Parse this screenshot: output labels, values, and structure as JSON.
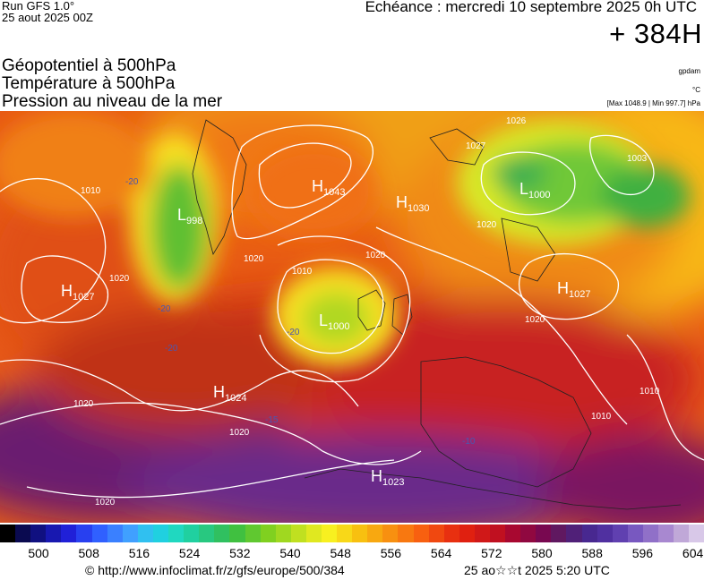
{
  "header": {
    "run": "Run GFS 1.0°",
    "run_date": "25 aout 2025 00Z",
    "echeance": "Echéance : mercredi 10 septembre 2025 0h UTC",
    "forecast_hour": "+ 384H"
  },
  "fields": {
    "line1": "Géopotentiel à 500hPa",
    "line2": "Température à 500hPa",
    "line3": "Pression au niveau de la mer"
  },
  "units": {
    "geopotential": "gpdam",
    "temperature": "°C",
    "pressure": "[Max 1048.9 | Min 997.7] hPa"
  },
  "pressure_centers": [
    {
      "type": "H",
      "value": "1043"
    },
    {
      "type": "H",
      "value": "1030"
    },
    {
      "type": "L",
      "value": "1000"
    },
    {
      "type": "L",
      "value": "998"
    },
    {
      "type": "H",
      "value": "1027"
    },
    {
      "type": "L",
      "value": "1000"
    },
    {
      "type": "H",
      "value": "1027"
    },
    {
      "type": "H",
      "value": "1024"
    },
    {
      "type": "H",
      "value": "1023"
    }
  ],
  "isobar_labels": [
    "1010",
    "1020",
    "1010",
    "1020",
    "1020",
    "1020",
    "1020",
    "1020",
    "1020",
    "1010",
    "1010",
    "1026",
    "1027",
    "1003",
    "1020"
  ],
  "temperature_labels": [
    "-20",
    "-20",
    "-20",
    "-20",
    "-15",
    "-10"
  ],
  "scale": {
    "ticks": [
      "500",
      "508",
      "516",
      "524",
      "532",
      "540",
      "548",
      "556",
      "564",
      "572",
      "580",
      "588",
      "596",
      "604"
    ],
    "colors": [
      "#000000",
      "#0a0a50",
      "#101080",
      "#1818b0",
      "#2020d8",
      "#2840f0",
      "#3060ff",
      "#3a80ff",
      "#40a0ff",
      "#30c0f0",
      "#20d0e0",
      "#20d8c0",
      "#20d0a0",
      "#28c880",
      "#30c060",
      "#40c040",
      "#60c830",
      "#80d020",
      "#a0d820",
      "#c0e020",
      "#e0e820",
      "#f8f020",
      "#f8d818",
      "#f8c010",
      "#f8a810",
      "#f89010",
      "#f87810",
      "#f86010",
      "#f04810",
      "#e83010",
      "#e02010",
      "#d01818",
      "#c01020",
      "#a80830",
      "#900840",
      "#780850",
      "#601860",
      "#502078",
      "#482890",
      "#5030a0",
      "#6040b0",
      "#7858c0",
      "#9070c8",
      "#a888d0",
      "#c0a8d8",
      "#d8c8e8"
    ]
  },
  "footer": {
    "credit": "© http://www.infoclimat.fr/z/gfs/europe/500/384",
    "generated": "25 ao☆☆t 2025  5:20 UTC"
  }
}
